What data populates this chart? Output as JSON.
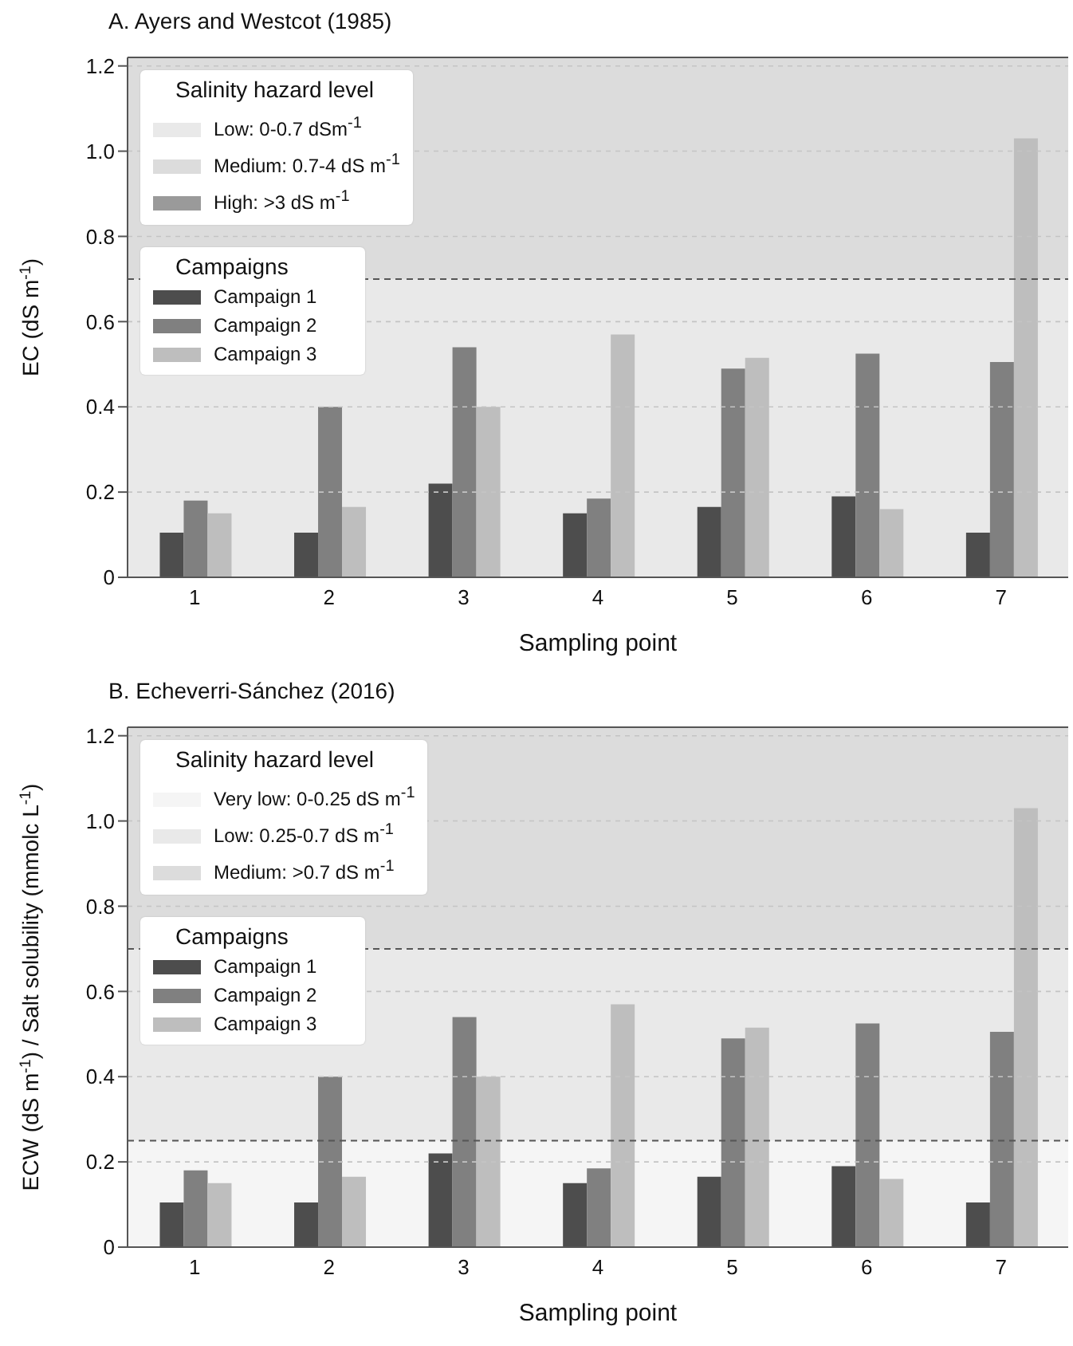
{
  "chart_data": [
    {
      "type": "bar",
      "title": "A.  Ayers and Westcot (1985)",
      "xlabel": "Sampling point",
      "ylabel": "EC (dS m$^{-1}$)",
      "legend_title": "Campaigns",
      "annotations": [
        "Salinity hazard level",
        "High: >3 dS m$^{-1}$"
      ],
      "categories": [
        "1",
        "2",
        "3",
        "4",
        "5",
        "6",
        "7"
      ],
      "series": [
        {
          "name": "Campaign 1",
          "color": "#4d4d4d",
          "values": [
            0.105,
            0.105,
            0.22,
            0.15,
            0.165,
            0.19,
            0.105
          ]
        },
        {
          "name": "Campaign 2",
          "color": "#808080",
          "values": [
            0.18,
            0.4,
            0.54,
            0.185,
            0.49,
            0.525,
            0.505
          ]
        },
        {
          "name": "Campaign 3",
          "color": "#bebebe",
          "values": [
            0.15,
            0.165,
            0.4,
            0.57,
            0.515,
            0.16,
            1.03
          ]
        }
      ],
      "ylim": [
        0,
        1.22
      ],
      "yticks": [
        0,
        {
          "value": 0.2,
          "label": "0.2"
        },
        {
          "value": 0.4,
          "label": "0.4"
        },
        {
          "value": 0.6,
          "label": "0.6"
        },
        {
          "value": 0.8,
          "label": "0.8"
        },
        {
          "value": 1,
          "label": "1.0"
        },
        {
          "value": 1.2,
          "label": "1.2"
        }
      ],
      "bands": [
        {
          "axis": "y",
          "from": 0,
          "to": 0.7,
          "label": "Low: 0-0.7 dSm$^{-1}$",
          "color": "#e9e9e9"
        },
        {
          "axis": "y",
          "from": 0.7,
          "to": 1.22,
          "label": "Medium: 0.7-4 dS m$^{-1}$",
          "color": "#dcdcdc"
        }
      ],
      "ref_lines": [
        {
          "axis": "y",
          "value": 0.7,
          "line_style": "dashed"
        }
      ],
      "grid": "y",
      "legend": "top left"
    },
    {
      "type": "bar",
      "title": "B.  Echeverri-Sánchez (2016)",
      "xlabel": "Sampling point",
      "ylabel": "ECW (dS m$^{-1}$) / Salt solubility (mmolc L$^{-1}$)",
      "legend_title": "Campaigns",
      "annotations": [
        "Salinity hazard level"
      ],
      "categories": [
        "1",
        "2",
        "3",
        "4",
        "5",
        "6",
        "7"
      ],
      "series": [
        {
          "name": "Campaign 1",
          "color": "#4d4d4d",
          "values": [
            0.105,
            0.105,
            0.22,
            0.15,
            0.165,
            0.19,
            0.105
          ]
        },
        {
          "name": "Campaign 2",
          "color": "#808080",
          "values": [
            0.18,
            0.4,
            0.54,
            0.185,
            0.49,
            0.525,
            0.505
          ]
        },
        {
          "name": "Campaign 3",
          "color": "#bebebe",
          "values": [
            0.15,
            0.165,
            0.4,
            0.57,
            0.515,
            0.16,
            1.03
          ]
        }
      ],
      "ylim": [
        0,
        1.22
      ],
      "yticks": [
        0,
        {
          "value": 0.2,
          "label": "0.2"
        },
        {
          "value": 0.4,
          "label": "0.4"
        },
        {
          "value": 0.6,
          "label": "0.6"
        },
        {
          "value": 0.8,
          "label": "0.8"
        },
        {
          "value": 1,
          "label": "1.0"
        },
        {
          "value": 1.2,
          "label": "1.2"
        }
      ],
      "bands": [
        {
          "axis": "y",
          "from": 0,
          "to": 0.25,
          "label": "Very low: 0-0.25 dS m$^{-1}$",
          "color": "#f5f5f5"
        },
        {
          "axis": "y",
          "from": 0.25,
          "to": 0.7,
          "label": "Low: 0.25-0.7 dS m$^{-1}$",
          "color": "#e9e9e9"
        },
        {
          "axis": "y",
          "from": 0.7,
          "to": 1.22,
          "label": "Medium: >0.7 dS m$^{-1}$",
          "color": "#dcdcdc"
        }
      ],
      "ref_lines": [
        {
          "axis": "y",
          "value": 0.25,
          "line_style": "dashed"
        },
        {
          "axis": "y",
          "value": 0.7,
          "line_style": "dashed"
        }
      ],
      "grid": "y",
      "legend": "top left"
    }
  ]
}
